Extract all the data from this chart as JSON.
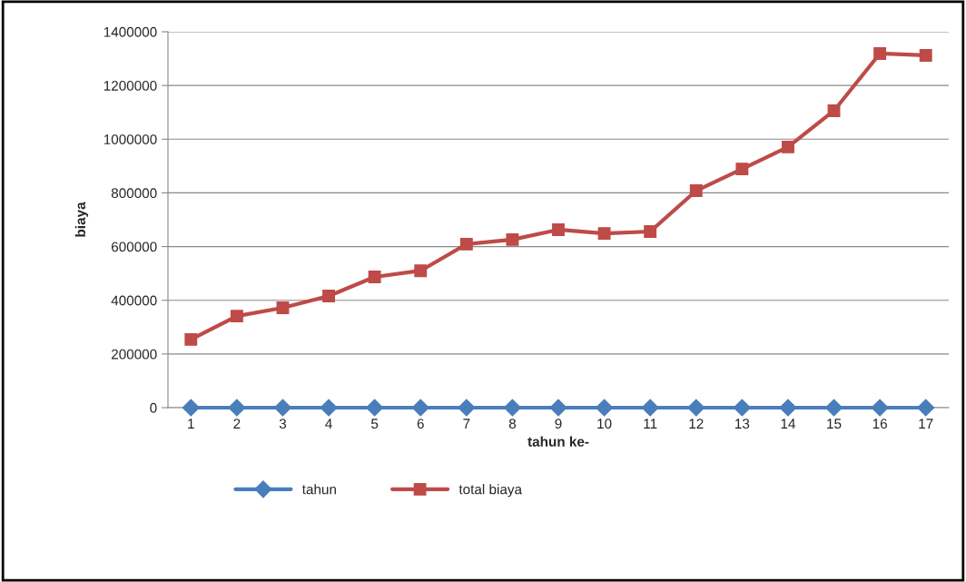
{
  "chart_data": {
    "type": "line",
    "xlabel": "tahun ke-",
    "ylabel": "biaya",
    "categories": [
      "1",
      "2",
      "3",
      "4",
      "5",
      "6",
      "7",
      "8",
      "9",
      "10",
      "11",
      "12",
      "13",
      "14",
      "15",
      "16",
      "17"
    ],
    "series": [
      {
        "name": "tahun",
        "color": "#4a7ebb",
        "marker": "diamond",
        "values": [
          0,
          0,
          0,
          0,
          0,
          0,
          0,
          0,
          0,
          0,
          0,
          0,
          0,
          0,
          0,
          0,
          0
        ]
      },
      {
        "name": "total biaya",
        "color": "#be4b48",
        "marker": "square",
        "values": [
          254000,
          341000,
          372000,
          416000,
          487000,
          510000,
          609000,
          626000,
          663000,
          649000,
          656000,
          808000,
          889000,
          971000,
          1106000,
          1319000,
          1312000
        ]
      }
    ],
    "ylim": [
      0,
      1400000
    ],
    "yticks": [
      0,
      200000,
      400000,
      600000,
      800000,
      1000000,
      1200000,
      1400000
    ],
    "grid": "y",
    "legend": "bottom",
    "line_style": "solid"
  }
}
